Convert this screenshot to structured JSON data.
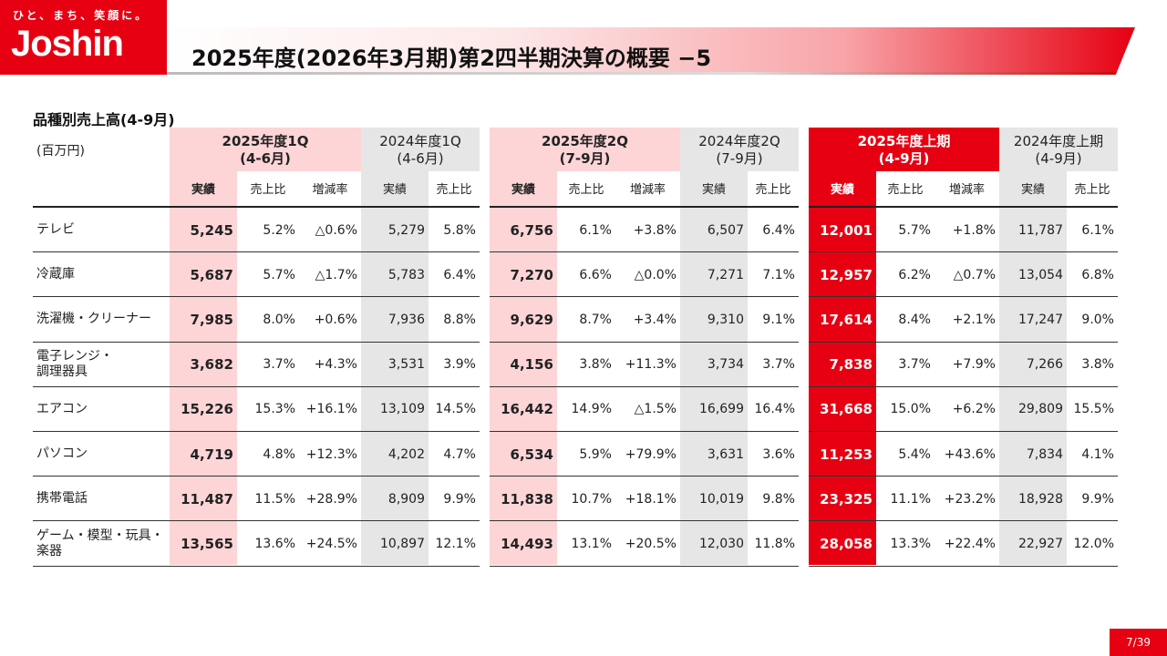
{
  "logo": {
    "tagline": "ひと、まち、笑顔に。",
    "brand": "Joshin"
  },
  "title": "2025年度(2026年3月期)第2四半期決算の概要 −5",
  "section_title": "品種別売上高(4-9月)",
  "unit": "(百万円)",
  "groups": [
    {
      "line1": "2025年度1Q",
      "line2": "(4-6月)"
    },
    {
      "line1": "2024年度1Q",
      "line2": "(4-6月)"
    },
    {
      "line1": "2025年度2Q",
      "line2": "(7-9月)"
    },
    {
      "line1": "2024年度2Q",
      "line2": "(7-9月)"
    },
    {
      "line1": "2025年度上期",
      "line2": "(4-9月)"
    },
    {
      "line1": "2024年度上期",
      "line2": "(4-9月)"
    }
  ],
  "subheaders": {
    "actual": "実績",
    "ratio": "売上比",
    "change": "増減率"
  },
  "rows": [
    {
      "label": "テレビ",
      "c": [
        "5,245",
        "5.2%",
        "△0.6%",
        "5,279",
        "5.8%",
        "6,756",
        "6.1%",
        "+3.8%",
        "6,507",
        "6.4%",
        "12,001",
        "5.7%",
        "+1.8%",
        "11,787",
        "6.1%"
      ]
    },
    {
      "label": "冷蔵庫",
      "c": [
        "5,687",
        "5.7%",
        "△1.7%",
        "5,783",
        "6.4%",
        "7,270",
        "6.6%",
        "△0.0%",
        "7,271",
        "7.1%",
        "12,957",
        "6.2%",
        "△0.7%",
        "13,054",
        "6.8%"
      ]
    },
    {
      "label": "洗濯機・クリーナー",
      "c": [
        "7,985",
        "8.0%",
        "+0.6%",
        "7,936",
        "8.8%",
        "9,629",
        "8.7%",
        "+3.4%",
        "9,310",
        "9.1%",
        "17,614",
        "8.4%",
        "+2.1%",
        "17,247",
        "9.0%"
      ]
    },
    {
      "label": "電子レンジ・\n調理器具",
      "c": [
        "3,682",
        "3.7%",
        "+4.3%",
        "3,531",
        "3.9%",
        "4,156",
        "3.8%",
        "+11.3%",
        "3,734",
        "3.7%",
        "7,838",
        "3.7%",
        "+7.9%",
        "7,266",
        "3.8%"
      ]
    },
    {
      "label": "エアコン",
      "c": [
        "15,226",
        "15.3%",
        "+16.1%",
        "13,109",
        "14.5%",
        "16,442",
        "14.9%",
        "△1.5%",
        "16,699",
        "16.4%",
        "31,668",
        "15.0%",
        "+6.2%",
        "29,809",
        "15.5%"
      ]
    },
    {
      "label": "パソコン",
      "c": [
        "4,719",
        "4.8%",
        "+12.3%",
        "4,202",
        "4.7%",
        "6,534",
        "5.9%",
        "+79.9%",
        "3,631",
        "3.6%",
        "11,253",
        "5.4%",
        "+43.6%",
        "7,834",
        "4.1%"
      ]
    },
    {
      "label": "携帯電話",
      "c": [
        "11,487",
        "11.5%",
        "+28.9%",
        "8,909",
        "9.9%",
        "11,838",
        "10.7%",
        "+18.1%",
        "10,019",
        "9.8%",
        "23,325",
        "11.1%",
        "+23.2%",
        "18,928",
        "9.9%"
      ]
    },
    {
      "label": "ゲーム・模型・玩具・\n楽器",
      "c": [
        "13,565",
        "13.6%",
        "+24.5%",
        "10,897",
        "12.1%",
        "14,493",
        "13.1%",
        "+20.5%",
        "12,030",
        "11.8%",
        "28,058",
        "13.3%",
        "+22.4%",
        "22,927",
        "12.0%"
      ]
    }
  ],
  "page_number": "7/39",
  "colors": {
    "brand_red": "#e60012",
    "light_pink": "#fdd5d7",
    "light_gray": "#e6e6e6"
  }
}
